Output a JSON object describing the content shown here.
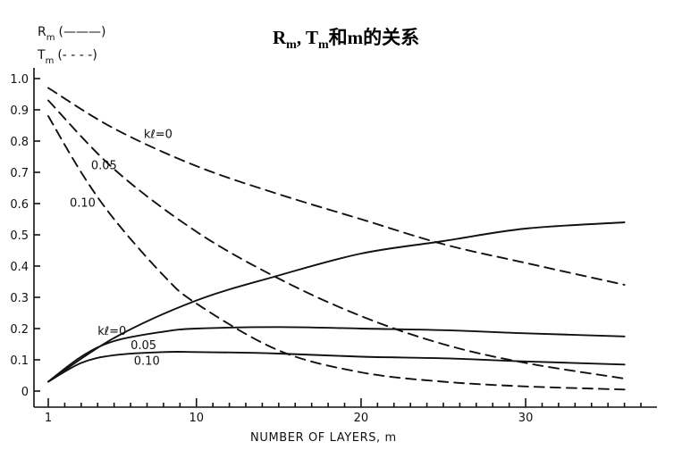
{
  "title": {
    "r_main": "R",
    "r_sub": "m",
    "sep": ", ",
    "t_main": "T",
    "t_sub": "m",
    "rest": "和m的关系"
  },
  "legend": [
    {
      "main": "R",
      "sub": "m",
      "text": "(———)",
      "style": "solid"
    },
    {
      "main": "T",
      "sub": "m",
      "text": "(- - - -)",
      "style": "dashed"
    }
  ],
  "chart_data": {
    "type": "line",
    "title": "Rm, Tm和m的关系",
    "xlabel": "NUMBER OF LAYERS, m",
    "ylabel": "",
    "xlim": [
      0,
      37
    ],
    "ylim": [
      0,
      1.0
    ],
    "x_ticks": [
      1,
      10,
      20,
      30
    ],
    "x_tick_labels": [
      "1",
      "10",
      "20",
      "30"
    ],
    "y_ticks": [
      0,
      0.1,
      0.2,
      0.3,
      0.4,
      0.5,
      0.6,
      0.7,
      0.8,
      0.9,
      1.0
    ],
    "y_tick_labels": [
      "0",
      "0.1",
      "0.2",
      "0.3",
      "0.4",
      "0.5",
      "0.6",
      "0.7",
      "0.8",
      "0.9",
      "1.0"
    ],
    "grid": false,
    "series": [
      {
        "kind": "T",
        "style": "dashed",
        "kl": 0,
        "points": [
          [
            1,
            0.97
          ],
          [
            5,
            0.84
          ],
          [
            10,
            0.72
          ],
          [
            15,
            0.63
          ],
          [
            20,
            0.55
          ],
          [
            25,
            0.47
          ],
          [
            30,
            0.41
          ],
          [
            36,
            0.34
          ]
        ]
      },
      {
        "kind": "T",
        "style": "dashed",
        "kl": 0.05,
        "points": [
          [
            1,
            0.93
          ],
          [
            5,
            0.71
          ],
          [
            10,
            0.51
          ],
          [
            15,
            0.36
          ],
          [
            20,
            0.24
          ],
          [
            25,
            0.15
          ],
          [
            30,
            0.09
          ],
          [
            36,
            0.04
          ]
        ]
      },
      {
        "kind": "T",
        "style": "dashed",
        "kl": 0.1,
        "points": [
          [
            1,
            0.88
          ],
          [
            3,
            0.7
          ],
          [
            5,
            0.55
          ],
          [
            8,
            0.37
          ],
          [
            10,
            0.28
          ],
          [
            15,
            0.13
          ],
          [
            20,
            0.06
          ],
          [
            25,
            0.03
          ],
          [
            30,
            0.015
          ],
          [
            36,
            0.005
          ]
        ]
      },
      {
        "kind": "R",
        "style": "solid",
        "kl": 0,
        "points": [
          [
            1,
            0.03
          ],
          [
            5,
            0.17
          ],
          [
            10,
            0.29
          ],
          [
            15,
            0.37
          ],
          [
            20,
            0.44
          ],
          [
            25,
            0.48
          ],
          [
            30,
            0.52
          ],
          [
            36,
            0.54
          ]
        ]
      },
      {
        "kind": "R",
        "style": "solid",
        "kl": 0.05,
        "points": [
          [
            1,
            0.03
          ],
          [
            3,
            0.11
          ],
          [
            5,
            0.16
          ],
          [
            8,
            0.19
          ],
          [
            10,
            0.2
          ],
          [
            15,
            0.205
          ],
          [
            20,
            0.2
          ],
          [
            25,
            0.195
          ],
          [
            30,
            0.185
          ],
          [
            36,
            0.175
          ]
        ]
      },
      {
        "kind": "R",
        "style": "solid",
        "kl": 0.1,
        "points": [
          [
            1,
            0.03
          ],
          [
            3,
            0.09
          ],
          [
            5,
            0.115
          ],
          [
            8,
            0.125
          ],
          [
            10,
            0.125
          ],
          [
            15,
            0.12
          ],
          [
            20,
            0.11
          ],
          [
            25,
            0.105
          ],
          [
            30,
            0.095
          ],
          [
            36,
            0.085
          ]
        ]
      }
    ],
    "annotations": [
      {
        "text": "kℓ=0",
        "x": 6.8,
        "y": 0.81
      },
      {
        "text": "0.05",
        "x": 3.6,
        "y": 0.71
      },
      {
        "text": "0.10",
        "x": 2.3,
        "y": 0.59
      },
      {
        "text": "kℓ=0",
        "x": 4.0,
        "y": 0.18
      },
      {
        "text": "0.05",
        "x": 6.0,
        "y": 0.135
      },
      {
        "text": "0.10",
        "x": 6.2,
        "y": 0.085
      }
    ]
  }
}
